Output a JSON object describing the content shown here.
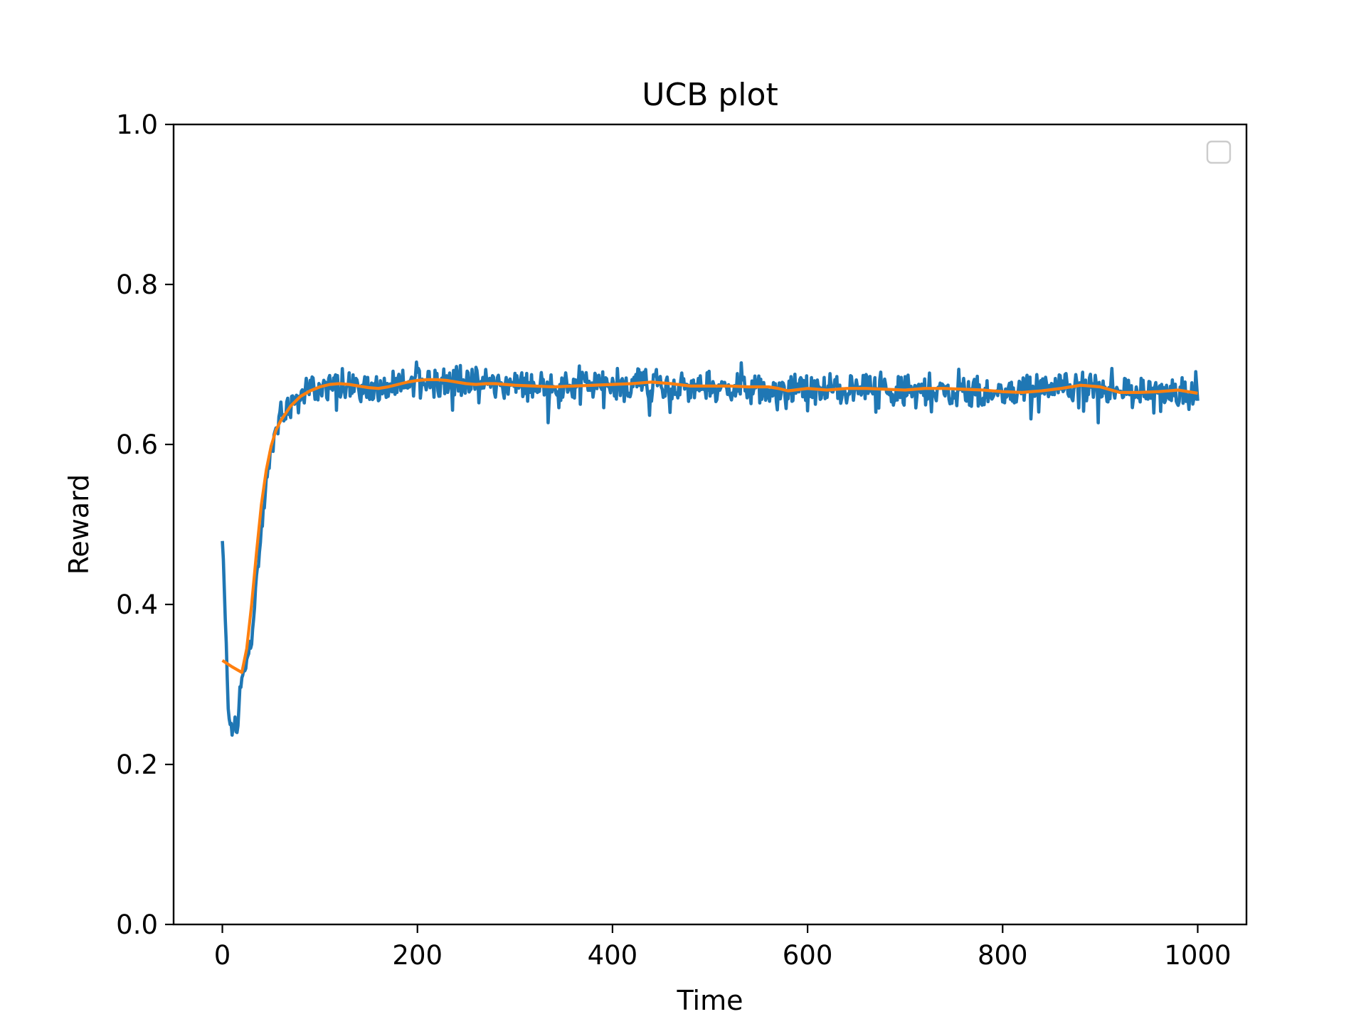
{
  "chart_data": {
    "type": "line",
    "title": "UCB plot",
    "xlabel": "Time",
    "ylabel": "Reward",
    "xlim": [
      -50,
      1050
    ],
    "ylim": [
      0.0,
      1.0
    ],
    "x_ticks": [
      "0",
      "200",
      "400",
      "600",
      "800",
      "1000"
    ],
    "x_tick_values": [
      0,
      200,
      400,
      600,
      800,
      1000
    ],
    "y_ticks": [
      "0.0",
      "0.2",
      "0.4",
      "0.6",
      "0.8",
      "1.0"
    ],
    "y_tick_values": [
      0.0,
      0.2,
      0.4,
      0.6,
      0.8,
      1.0
    ],
    "grid": false,
    "legend": {
      "placement": "top-right",
      "entries": []
    },
    "series": [
      {
        "color": "#1f77b4",
        "style": "noisy",
        "x": [
          0,
          3,
          6,
          9,
          12,
          15,
          18,
          21,
          25,
          30,
          35,
          40,
          45,
          50,
          55,
          60,
          65,
          70,
          75,
          80,
          85,
          90,
          95,
          100,
          110,
          120,
          130,
          140,
          150,
          160,
          170,
          180,
          190,
          200,
          210,
          220,
          230,
          240,
          250,
          260,
          270,
          280,
          290,
          300,
          320,
          340,
          360,
          380,
          400,
          420,
          440,
          460,
          480,
          500,
          520,
          540,
          560,
          580,
          600,
          620,
          640,
          660,
          680,
          700,
          720,
          740,
          760,
          780,
          800,
          820,
          840,
          860,
          880,
          900,
          920,
          940,
          960,
          980,
          1000
        ],
        "values": [
          0.48,
          0.38,
          0.27,
          0.24,
          0.25,
          0.24,
          0.29,
          0.31,
          0.33,
          0.36,
          0.43,
          0.49,
          0.55,
          0.59,
          0.62,
          0.63,
          0.64,
          0.65,
          0.655,
          0.66,
          0.665,
          0.668,
          0.67,
          0.672,
          0.674,
          0.675,
          0.674,
          0.672,
          0.67,
          0.669,
          0.671,
          0.673,
          0.676,
          0.679,
          0.681,
          0.68,
          0.678,
          0.676,
          0.675,
          0.676,
          0.677,
          0.676,
          0.675,
          0.674,
          0.673,
          0.673,
          0.674,
          0.675,
          0.676,
          0.677,
          0.677,
          0.674,
          0.672,
          0.672,
          0.671,
          0.67,
          0.668,
          0.667,
          0.669,
          0.668,
          0.669,
          0.67,
          0.669,
          0.668,
          0.669,
          0.668,
          0.667,
          0.666,
          0.665,
          0.666,
          0.67,
          0.674,
          0.673,
          0.668,
          0.665,
          0.665,
          0.667,
          0.667,
          0.662
        ]
      },
      {
        "color": "#ff7f0e",
        "style": "smooth",
        "x": [
          0,
          10,
          20,
          25,
          30,
          35,
          40,
          45,
          50,
          55,
          60,
          70,
          80,
          90,
          100,
          110,
          120,
          130,
          140,
          150,
          160,
          170,
          180,
          190,
          200,
          210,
          220,
          230,
          240,
          250,
          260,
          270,
          280,
          290,
          300,
          320,
          340,
          360,
          380,
          400,
          420,
          440,
          460,
          480,
          500,
          520,
          540,
          560,
          570,
          580,
          600,
          620,
          640,
          660,
          680,
          700,
          720,
          740,
          760,
          780,
          800,
          820,
          840,
          860,
          880,
          900,
          920,
          940,
          960,
          980,
          1000
        ],
        "values": [
          0.33,
          0.322,
          0.315,
          0.345,
          0.4,
          0.465,
          0.525,
          0.568,
          0.598,
          0.618,
          0.63,
          0.648,
          0.66,
          0.667,
          0.672,
          0.675,
          0.676,
          0.675,
          0.673,
          0.671,
          0.67,
          0.672,
          0.675,
          0.678,
          0.68,
          0.681,
          0.681,
          0.68,
          0.678,
          0.676,
          0.675,
          0.676,
          0.676,
          0.675,
          0.674,
          0.673,
          0.672,
          0.673,
          0.674,
          0.675,
          0.676,
          0.678,
          0.676,
          0.673,
          0.673,
          0.673,
          0.672,
          0.672,
          0.67,
          0.667,
          0.67,
          0.668,
          0.67,
          0.67,
          0.669,
          0.668,
          0.67,
          0.67,
          0.669,
          0.668,
          0.666,
          0.665,
          0.667,
          0.67,
          0.674,
          0.672,
          0.665,
          0.665,
          0.666,
          0.668,
          0.664
        ]
      }
    ]
  },
  "colors": {
    "axes": "#000000",
    "background": "#ffffff",
    "legend_border": "#cccccc"
  }
}
